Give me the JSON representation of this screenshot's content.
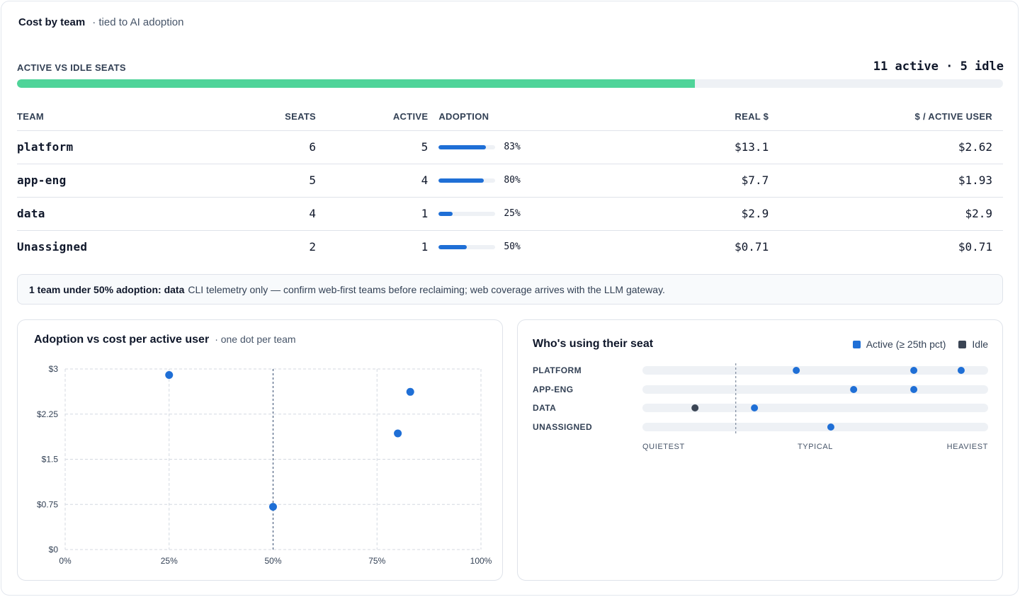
{
  "header": {
    "title": "Cost by team",
    "subtitle": "· tied to AI adoption"
  },
  "seats": {
    "label": "ACTIVE VS IDLE SEATS",
    "summary": "11 active · 5 idle",
    "active": 11,
    "idle": 5,
    "active_fraction": 0.6875,
    "fill_color": "#4fd499"
  },
  "table": {
    "headers": {
      "team": "TEAM",
      "seats": "SEATS",
      "active": "ACTIVE",
      "adoption": "ADOPTION",
      "real": "REAL $",
      "per_active": "$ / ACTIVE USER"
    },
    "rows": [
      {
        "team": "platform",
        "seats": "6",
        "active": "5",
        "adoption_pct": 83,
        "adoption_label": "83%",
        "real": "$13.1",
        "per_active": "$2.62"
      },
      {
        "team": "app-eng",
        "seats": "5",
        "active": "4",
        "adoption_pct": 80,
        "adoption_label": "80%",
        "real": "$7.7",
        "per_active": "$1.93"
      },
      {
        "team": "data",
        "seats": "4",
        "active": "1",
        "adoption_pct": 25,
        "adoption_label": "25%",
        "real": "$2.9",
        "per_active": "$2.9"
      },
      {
        "team": "Unassigned",
        "seats": "2",
        "active": "1",
        "adoption_pct": 50,
        "adoption_label": "50%",
        "real": "$0.71",
        "per_active": "$0.71"
      }
    ]
  },
  "note": {
    "bold": "1 team under 50% adoption: data",
    "text": "CLI telemetry only — confirm web-first teams before reclaiming; web coverage arrives with the LLM gateway."
  },
  "scatter_panel": {
    "title": "Adoption vs cost per active user",
    "subtitle": "· one dot per team"
  },
  "strip_panel": {
    "title": "Who's using their seat",
    "legend": [
      {
        "label": "Active (≥ 25th pct)",
        "color": "#1f6fd6"
      },
      {
        "label": "Idle",
        "color": "#3b4554"
      }
    ],
    "axis_labels": {
      "left": "QUIETEST",
      "middle": "TYPICAL",
      "right": "HEAVIEST"
    }
  },
  "colors": {
    "accent": "#1f6fd6",
    "idle": "#3b4554",
    "grid": "#d4d9e1",
    "track": "#eef1f5"
  },
  "chart_data": [
    {
      "type": "scatter",
      "xlabel": "",
      "ylabel": "",
      "xlim": [
        0,
        100
      ],
      "ylim": [
        0,
        3
      ],
      "x_ticks": [
        "0%",
        "25%",
        "50%",
        "75%",
        "100%"
      ],
      "x_tick_values": [
        0,
        25,
        50,
        75,
        100
      ],
      "y_ticks": [
        "$0",
        "$0.75",
        "$1.5",
        "$2.25",
        "$3"
      ],
      "y_tick_values": [
        0,
        0.75,
        1.5,
        2.25,
        3
      ],
      "reference_x": 50,
      "grid": true,
      "points": [
        {
          "team": "platform",
          "x": 83,
          "y": 2.62
        },
        {
          "team": "app-eng",
          "x": 80,
          "y": 1.93
        },
        {
          "team": "data",
          "x": 25,
          "y": 2.9
        },
        {
          "team": "Unassigned",
          "x": 50,
          "y": 0.71
        }
      ]
    },
    {
      "type": "scatter",
      "categories": [
        "PLATFORM",
        "APP-ENG",
        "DATA",
        "UNASSIGNED"
      ],
      "x_range": [
        0,
        1
      ],
      "typical_line": 0.27,
      "rows": [
        {
          "team": "PLATFORM",
          "users": [
            {
              "value": 0.445,
              "status": "active"
            },
            {
              "value": 0.785,
              "status": "active"
            },
            {
              "value": 0.922,
              "status": "active"
            }
          ]
        },
        {
          "team": "APP-ENG",
          "users": [
            {
              "value": 0.611,
              "status": "active"
            },
            {
              "value": 0.785,
              "status": "active"
            }
          ]
        },
        {
          "team": "DATA",
          "users": [
            {
              "value": 0.152,
              "status": "idle"
            },
            {
              "value": 0.324,
              "status": "active"
            }
          ]
        },
        {
          "team": "UNASSIGNED",
          "users": [
            {
              "value": 0.545,
              "status": "active"
            }
          ]
        }
      ]
    }
  ]
}
